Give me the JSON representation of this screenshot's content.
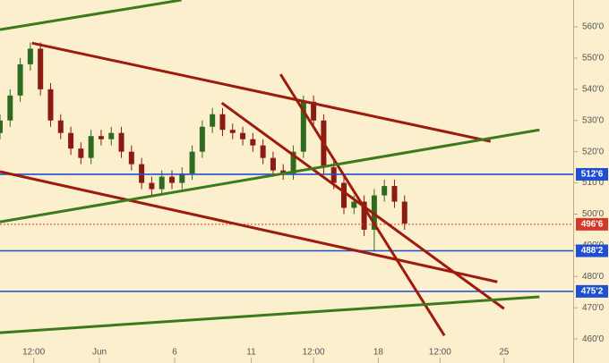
{
  "chart_data": {
    "type": "candlestick",
    "x": [
      0,
      1.5,
      3,
      4.5,
      6,
      7.5,
      9,
      10.5,
      12,
      13.5,
      15,
      16.5,
      18,
      19.5,
      21,
      22.5,
      24,
      25.5,
      27,
      28.5,
      30,
      31.5,
      33,
      34.5,
      36,
      37.5,
      39,
      40.5,
      42,
      43.5,
      45,
      46.5,
      48,
      49.5,
      51,
      52.5,
      54,
      55.5,
      57,
      58.5,
      60
    ],
    "open": [
      526,
      530,
      538,
      548,
      553,
      540,
      530,
      526,
      521,
      518,
      525,
      524,
      526,
      520,
      516,
      510,
      508,
      512,
      510,
      513,
      520,
      528,
      532,
      527,
      526,
      524,
      522,
      518,
      514,
      513,
      520,
      536,
      530,
      515,
      510,
      502,
      504,
      495,
      506,
      509,
      504
    ],
    "high": [
      532,
      540,
      550,
      555,
      555,
      542,
      532,
      528,
      523,
      527,
      527,
      528,
      528,
      522,
      518,
      512,
      514,
      514,
      515,
      522,
      530,
      534,
      534,
      529,
      528,
      526,
      524,
      520,
      516,
      522,
      538,
      538,
      532,
      517,
      512,
      506,
      506,
      508,
      511,
      511,
      506
    ],
    "low": [
      524,
      528,
      536,
      546,
      538,
      528,
      524,
      519,
      516,
      516,
      522,
      522,
      518,
      514,
      508,
      506,
      506,
      508,
      508,
      511,
      518,
      526,
      525,
      524,
      522,
      520,
      516,
      512,
      511,
      511,
      518,
      528,
      513,
      508,
      500,
      500,
      493,
      488,
      504,
      502,
      495
    ],
    "close": [
      530,
      538,
      548,
      553,
      540,
      530,
      526,
      521,
      518,
      525,
      524,
      526,
      520,
      516,
      510,
      508,
      512,
      510,
      513,
      520,
      528,
      532,
      527,
      526,
      524,
      522,
      518,
      514,
      513,
      520,
      536,
      530,
      515,
      510,
      502,
      504,
      495,
      506,
      509,
      504,
      497
    ],
    "up_color": "#2f6b1f",
    "down_color": "#8b1a10",
    "xlim": [
      0,
      85
    ],
    "xticks": [
      {
        "value": 5,
        "label": "12:00"
      },
      {
        "value": 14.75,
        "label": "Jun"
      },
      {
        "value": 25.9,
        "label": "6"
      },
      {
        "value": 37.25,
        "label": "11"
      },
      {
        "value": 46.5,
        "label": "12:00"
      },
      {
        "value": 56.1,
        "label": "18"
      },
      {
        "value": 65.25,
        "label": "12:00"
      },
      {
        "value": 74.75,
        "label": "25"
      }
    ],
    "ylim": [
      452.3,
      568.6
    ],
    "yticks": [
      {
        "value": 460,
        "label": "460'0"
      },
      {
        "value": 470,
        "label": "470'0"
      },
      {
        "value": 480,
        "label": "480'0"
      },
      {
        "value": 490,
        "label": "490'0"
      },
      {
        "value": 500,
        "label": "500'0"
      },
      {
        "value": 510,
        "label": "510'0"
      },
      {
        "value": 520,
        "label": "520'0"
      },
      {
        "value": 530,
        "label": "530'0"
      },
      {
        "value": 540,
        "label": "540'0"
      },
      {
        "value": 550,
        "label": "550'0"
      },
      {
        "value": 560,
        "label": "560'0"
      }
    ],
    "levels": [
      {
        "value": 512.75,
        "label": "512'6",
        "color": "#1f4fd1",
        "style": "solid"
      },
      {
        "value": 496.75,
        "label": "496'6",
        "color": "#d3392a",
        "style": "dotted"
      },
      {
        "value": 488.25,
        "label": "488'2",
        "color": "#1f4fd1",
        "style": "solid"
      },
      {
        "value": 475.25,
        "label": "475'2",
        "color": "#1f4fd1",
        "style": "solid"
      }
    ],
    "trendlines": [
      {
        "color": "#9b1c0c",
        "x": [
          4.75,
          72.75
        ],
        "y": [
          554.8,
          523.3
        ]
      },
      {
        "color": "#9b1c0c",
        "x": [
          0,
          73.75
        ],
        "y": [
          513.6,
          478.3
        ]
      },
      {
        "color": "#9b1c0c",
        "x": [
          32.9,
          74.75
        ],
        "y": [
          535.6,
          469.7
        ]
      },
      {
        "color": "#9b1c0c",
        "x": [
          41.6,
          65.9
        ],
        "y": [
          544.8,
          461.1
        ]
      },
      {
        "color": "#3c7a1c",
        "x": [
          0,
          80
        ],
        "y": [
          497.5,
          527.0
        ]
      },
      {
        "color": "#3c7a1c",
        "x": [
          0,
          26.9
        ],
        "y": [
          559.1,
          568.6
        ]
      },
      {
        "color": "#3c7a1c",
        "x": [
          0,
          80
        ],
        "y": [
          462.0,
          473.5
        ]
      }
    ]
  }
}
